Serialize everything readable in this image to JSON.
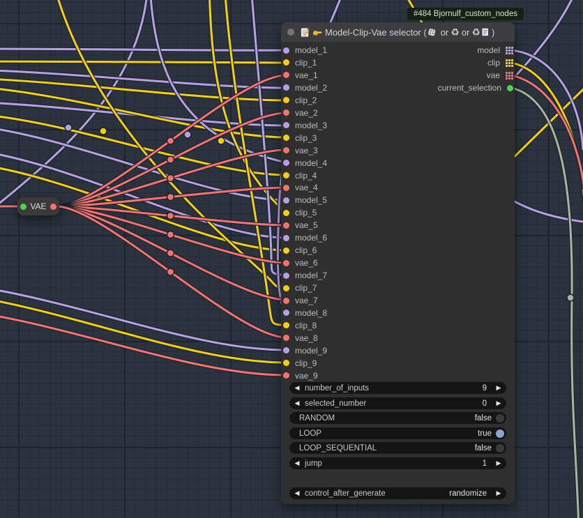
{
  "badge": {
    "text": "#484 Bjornulf_custom_nodes"
  },
  "vae_node": {
    "label": "VAE"
  },
  "selector_node": {
    "title": "Model-Clip-Vae selector (",
    "or_1": "or",
    "or_2": "or",
    "recycle_symbol": "♻",
    "title_close": ")",
    "inputs": [
      {
        "label": "model_1",
        "type": "model"
      },
      {
        "label": "clip_1",
        "type": "clip"
      },
      {
        "label": "vae_1",
        "type": "vae"
      },
      {
        "label": "model_2",
        "type": "model"
      },
      {
        "label": "clip_2",
        "type": "clip"
      },
      {
        "label": "vae_2",
        "type": "vae"
      },
      {
        "label": "model_3",
        "type": "model"
      },
      {
        "label": "clip_3",
        "type": "clip"
      },
      {
        "label": "vae_3",
        "type": "vae"
      },
      {
        "label": "model_4",
        "type": "model"
      },
      {
        "label": "clip_4",
        "type": "clip"
      },
      {
        "label": "vae_4",
        "type": "vae"
      },
      {
        "label": "model_5",
        "type": "model"
      },
      {
        "label": "clip_5",
        "type": "clip"
      },
      {
        "label": "vae_5",
        "type": "vae"
      },
      {
        "label": "model_6",
        "type": "model"
      },
      {
        "label": "clip_6",
        "type": "clip"
      },
      {
        "label": "vae_6",
        "type": "vae"
      },
      {
        "label": "model_7",
        "type": "model"
      },
      {
        "label": "clip_7",
        "type": "clip"
      },
      {
        "label": "vae_7",
        "type": "vae"
      },
      {
        "label": "model_8",
        "type": "model"
      },
      {
        "label": "clip_8",
        "type": "clip"
      },
      {
        "label": "vae_8",
        "type": "vae"
      },
      {
        "label": "model_9",
        "type": "model"
      },
      {
        "label": "clip_9",
        "type": "clip"
      },
      {
        "label": "vae_9",
        "type": "vae"
      }
    ],
    "outputs": [
      {
        "label": "model",
        "type": "model",
        "icon": "grid"
      },
      {
        "label": "clip",
        "type": "clip",
        "icon": "grid"
      },
      {
        "label": "vae",
        "type": "vae",
        "icon": "grid"
      },
      {
        "label": "current_selection",
        "type": "selection",
        "icon": "dot"
      }
    ],
    "widgets": [
      {
        "kind": "stepper",
        "label": "number_of_inputs",
        "value": "9"
      },
      {
        "kind": "stepper",
        "label": "selected_number",
        "value": "0"
      },
      {
        "kind": "toggle",
        "label": "RANDOM",
        "value": "false"
      },
      {
        "kind": "toggle",
        "label": "LOOP",
        "value": "true"
      },
      {
        "kind": "toggle",
        "label": "LOOP_SEQUENTIAL",
        "value": "false"
      },
      {
        "kind": "stepper",
        "label": "jump",
        "value": "1"
      },
      {
        "kind": "combo",
        "label": "control_after_generate",
        "value": "randomize"
      }
    ]
  },
  "colors": {
    "model": "#b6a0e2",
    "clip": "#f3ce19",
    "vae": "#f37272",
    "selection": "#4ad64a",
    "sage": "#a6b59c",
    "toggle_on": "#8ba6c6",
    "toggle_off": "#3a3a3a"
  }
}
